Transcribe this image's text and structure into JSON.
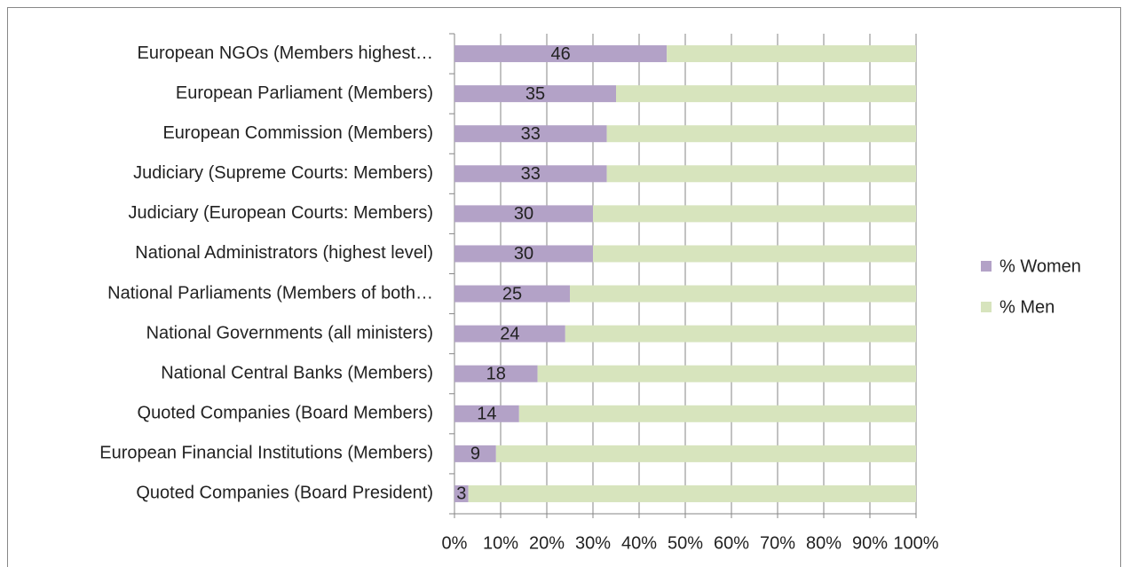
{
  "chart_data": {
    "type": "stacked-bar-horizontal",
    "categories": [
      "European NGOs (Members highest…",
      "European Parliament (Members)",
      "European Commission (Members)",
      "Judiciary (Supreme Courts: Members)",
      "Judiciary (European Courts: Members)",
      "National Administrators (highest level)",
      "National Parliaments (Members of both…",
      "National Governments (all ministers)",
      "National Central Banks (Members)",
      "Quoted Companies (Board Members)",
      "European Financial Institutions (Members)",
      "Quoted Companies (Board President)"
    ],
    "series": [
      {
        "name": "% Women",
        "color": "#b3a2c7",
        "values": [
          46,
          35,
          33,
          33,
          30,
          30,
          25,
          24,
          18,
          14,
          9,
          3
        ]
      },
      {
        "name": "% Men",
        "color": "#d7e4bd",
        "values": [
          54,
          65,
          67,
          67,
          70,
          70,
          75,
          76,
          82,
          86,
          91,
          97
        ]
      }
    ],
    "xlim": [
      0,
      100
    ],
    "xticks": [
      {
        "value": 0,
        "label": "0%"
      },
      {
        "value": 10,
        "label": "10%"
      },
      {
        "value": 20,
        "label": "20%"
      },
      {
        "value": 30,
        "label": "30%"
      },
      {
        "value": 40,
        "label": "40%"
      },
      {
        "value": 50,
        "label": "50%"
      },
      {
        "value": 60,
        "label": "60%"
      },
      {
        "value": 70,
        "label": "70%"
      },
      {
        "value": 80,
        "label": "80%"
      },
      {
        "value": 90,
        "label": "90%"
      },
      {
        "value": 100,
        "label": "100%"
      }
    ],
    "grid": true,
    "legend": "right"
  }
}
